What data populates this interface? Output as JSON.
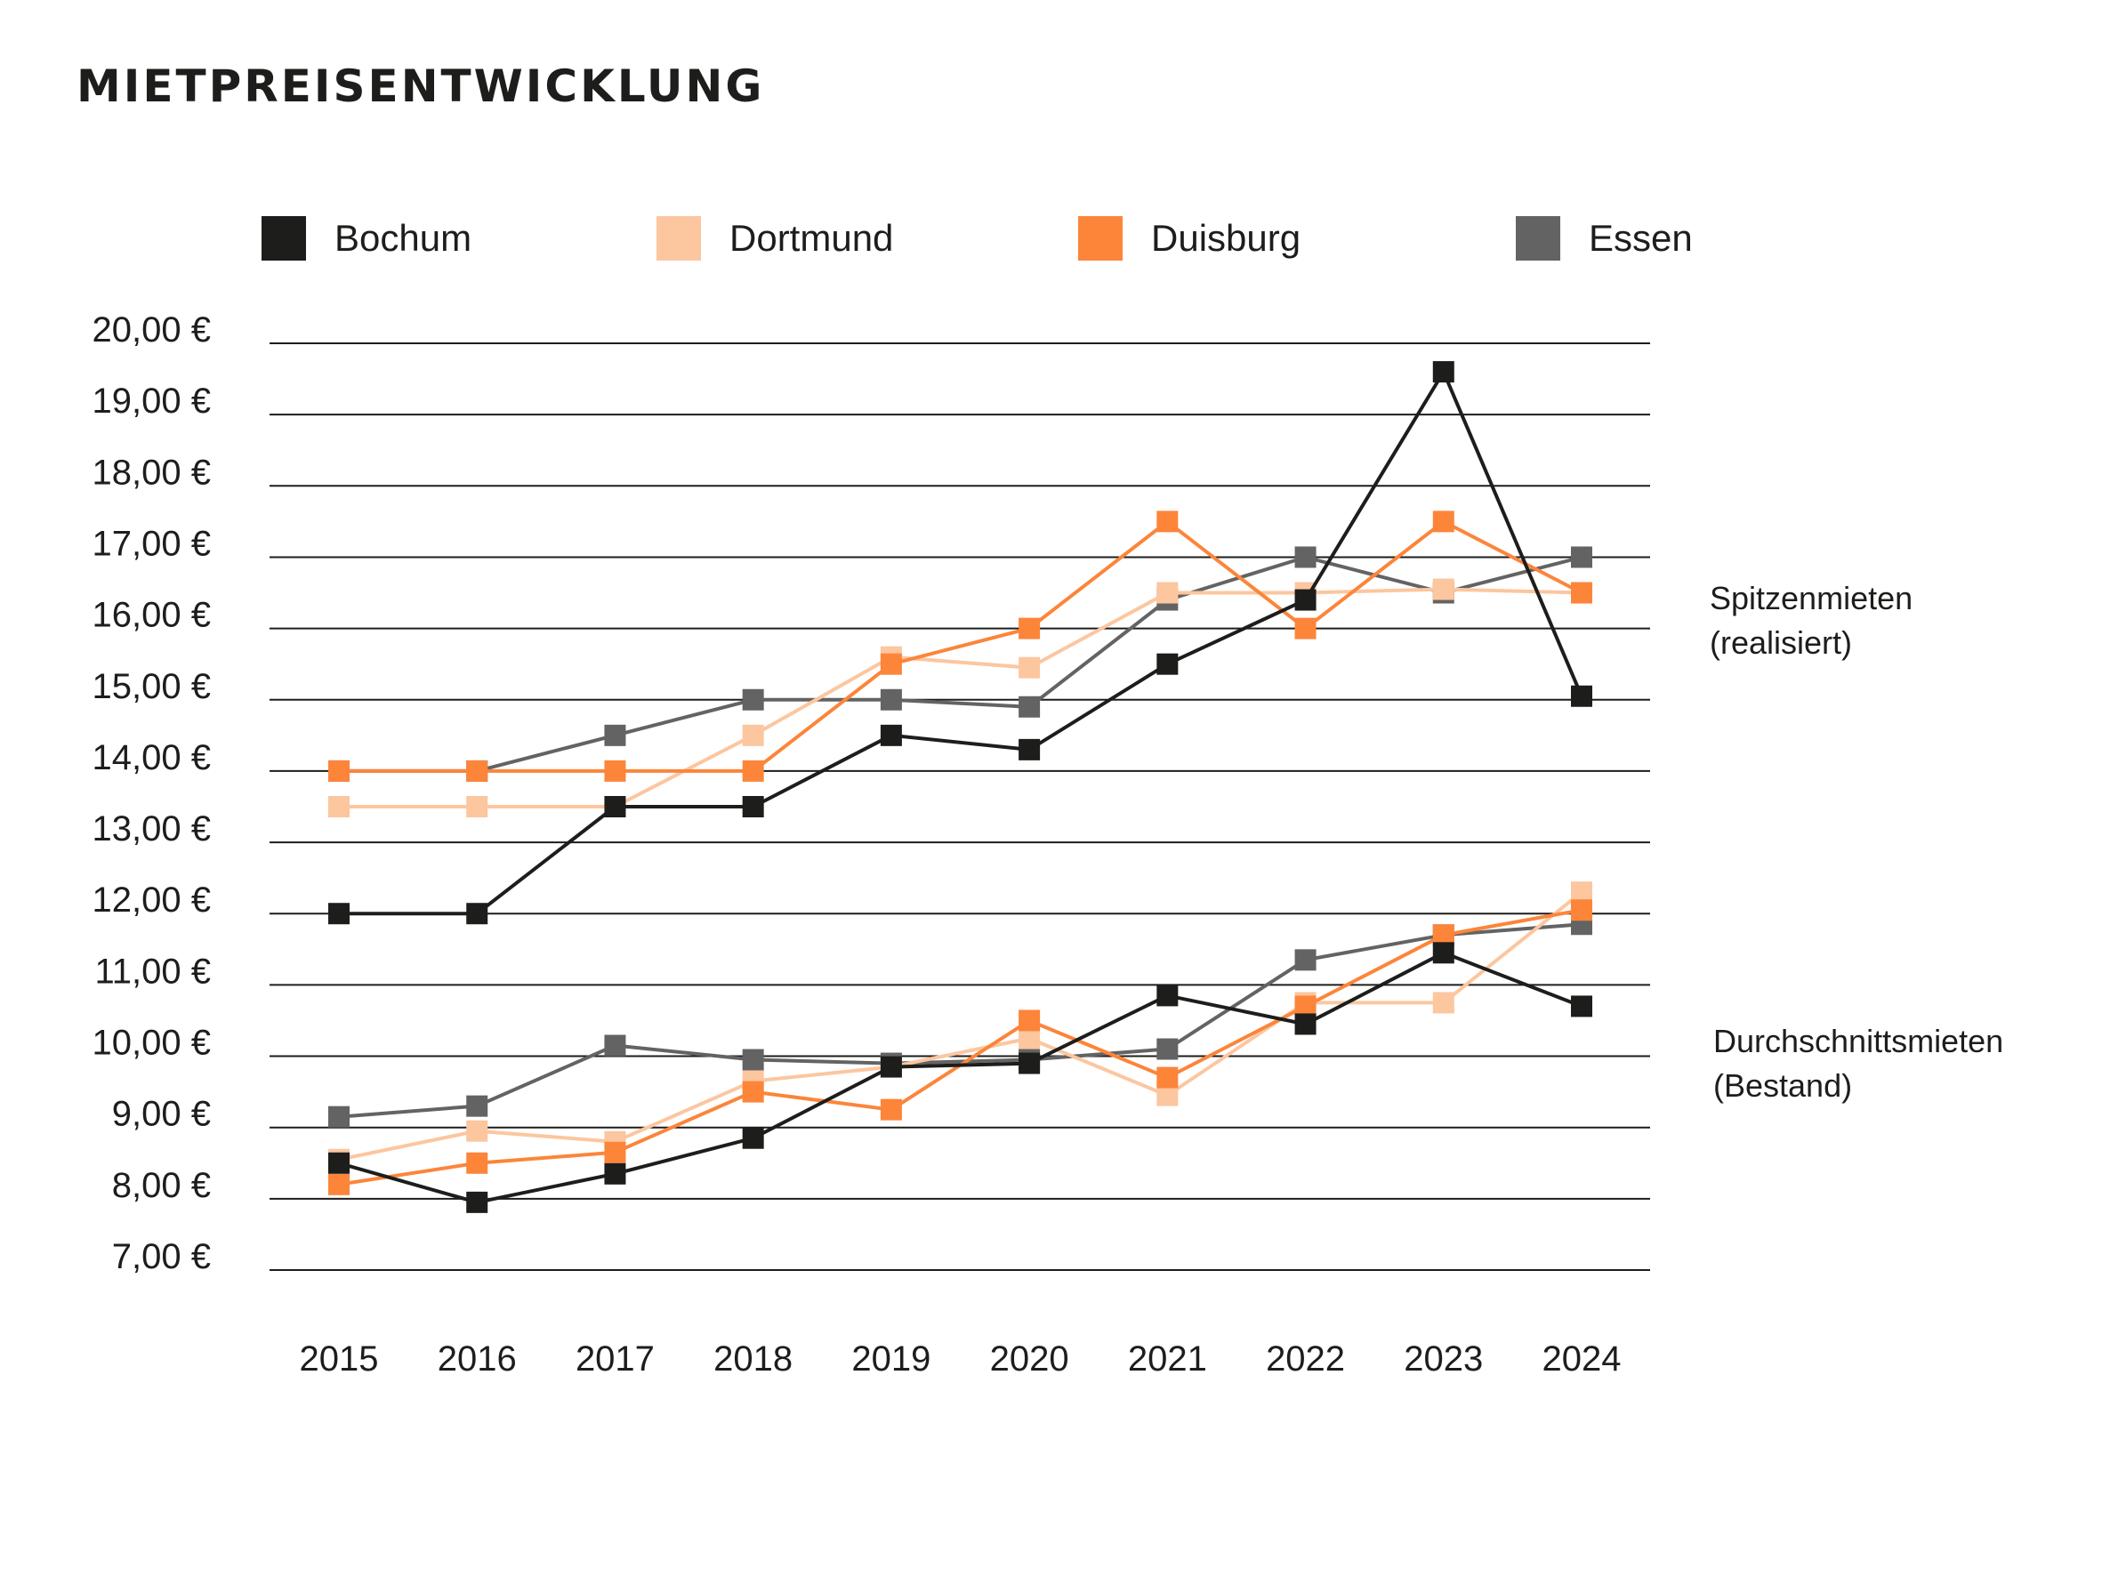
{
  "chart_data": {
    "type": "line",
    "title": "MIETPREISENTWICKLUNG",
    "xlabel": "",
    "ylabel": "",
    "x": [
      "2015",
      "2016",
      "2017",
      "2018",
      "2019",
      "2020",
      "2021",
      "2022",
      "2023",
      "2024"
    ],
    "ylim": [
      7,
      20
    ],
    "yticks": [
      20,
      19,
      18,
      17,
      16,
      15,
      14,
      13,
      12,
      11,
      10,
      9,
      8,
      7
    ],
    "ytick_labels": [
      "20,00 €",
      "19,00 €",
      "18,00 €",
      "17,00 €",
      "16,00 €",
      "15,00 €",
      "14,00 €",
      "13,00 €",
      "12,00 €",
      "11,00 €",
      "10,00 €",
      "9,00 €",
      "8,00 €",
      "7,00 €"
    ],
    "grid": true,
    "legend": [
      "Bochum",
      "Dortmund",
      "Duisburg",
      "Essen"
    ],
    "legend_position": "top",
    "groups": [
      {
        "label_line1": "Spitzenmieten",
        "label_line2": "(realisiert)",
        "series": [
          {
            "name": "Essen",
            "color": "#646363",
            "values": [
              14.0,
              14.0,
              14.5,
              15.0,
              15.0,
              14.9,
              16.4,
              17.0,
              16.5,
              17.0
            ]
          },
          {
            "name": "Dortmund",
            "color": "#fcc69f",
            "values": [
              13.5,
              13.5,
              13.5,
              14.5,
              15.6,
              15.45,
              16.5,
              16.5,
              16.55,
              16.5
            ]
          },
          {
            "name": "Duisburg",
            "color": "#fc853a",
            "values": [
              14.0,
              14.0,
              14.0,
              14.0,
              15.5,
              16.0,
              17.5,
              16.0,
              17.5,
              16.5
            ]
          },
          {
            "name": "Bochum",
            "color": "#1d1d1b",
            "values": [
              12.0,
              12.0,
              13.5,
              13.5,
              14.5,
              14.3,
              15.5,
              16.4,
              19.6,
              15.05
            ]
          }
        ]
      },
      {
        "label_line1": "Durchschnittsmieten",
        "label_line2": "(Bestand)",
        "series": [
          {
            "name": "Essen",
            "color": "#646363",
            "values": [
              9.15,
              9.3,
              10.15,
              9.95,
              9.9,
              9.95,
              10.1,
              11.35,
              11.7,
              11.85
            ]
          },
          {
            "name": "Dortmund",
            "color": "#fcc69f",
            "values": [
              8.55,
              8.95,
              8.8,
              9.65,
              9.85,
              10.25,
              9.45,
              10.75,
              10.75,
              12.3
            ]
          },
          {
            "name": "Duisburg",
            "color": "#fc853a",
            "values": [
              8.2,
              8.5,
              8.65,
              9.5,
              9.25,
              10.5,
              9.7,
              10.7,
              11.7,
              12.05
            ]
          },
          {
            "name": "Bochum",
            "color": "#1d1d1b",
            "values": [
              8.5,
              7.95,
              8.35,
              8.85,
              9.85,
              9.9,
              10.85,
              10.45,
              11.45,
              10.7
            ]
          }
        ]
      }
    ]
  },
  "legend_items": [
    {
      "label": "Bochum",
      "color": "#1d1d1b"
    },
    {
      "label": "Dortmund",
      "color": "#fcc69f"
    },
    {
      "label": "Duisburg",
      "color": "#fc853a"
    },
    {
      "label": "Essen",
      "color": "#646363"
    }
  ]
}
